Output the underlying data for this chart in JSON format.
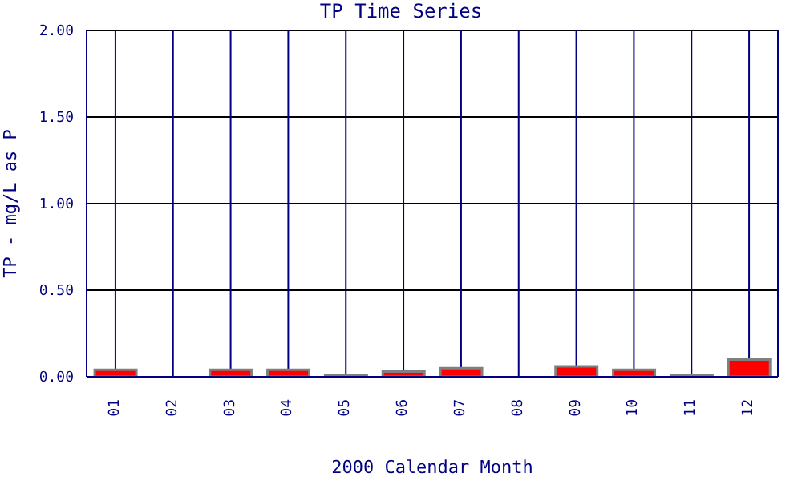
{
  "chart_data": {
    "type": "bar",
    "title": "TP Time Series",
    "xlabel": "2000 Calendar Month",
    "ylabel": "TP - mg/L as P",
    "categories": [
      "01",
      "02",
      "03",
      "04",
      "05",
      "06",
      "07",
      "08",
      "09",
      "10",
      "11",
      "12"
    ],
    "values": [
      0.04,
      0,
      0.04,
      0.04,
      0.01,
      0.03,
      0.05,
      0,
      0.06,
      0.04,
      0.01,
      0.1
    ],
    "color": "#ff0000",
    "ylim": [
      0,
      2
    ],
    "yticks": [
      {
        "value": 0,
        "label": "0.00"
      },
      {
        "value": 0.5,
        "label": "0.50"
      },
      {
        "value": 1,
        "label": "1.00"
      },
      {
        "value": 1.5,
        "label": "1.50"
      },
      {
        "value": 2,
        "label": "2.00"
      }
    ],
    "grid": true
  }
}
